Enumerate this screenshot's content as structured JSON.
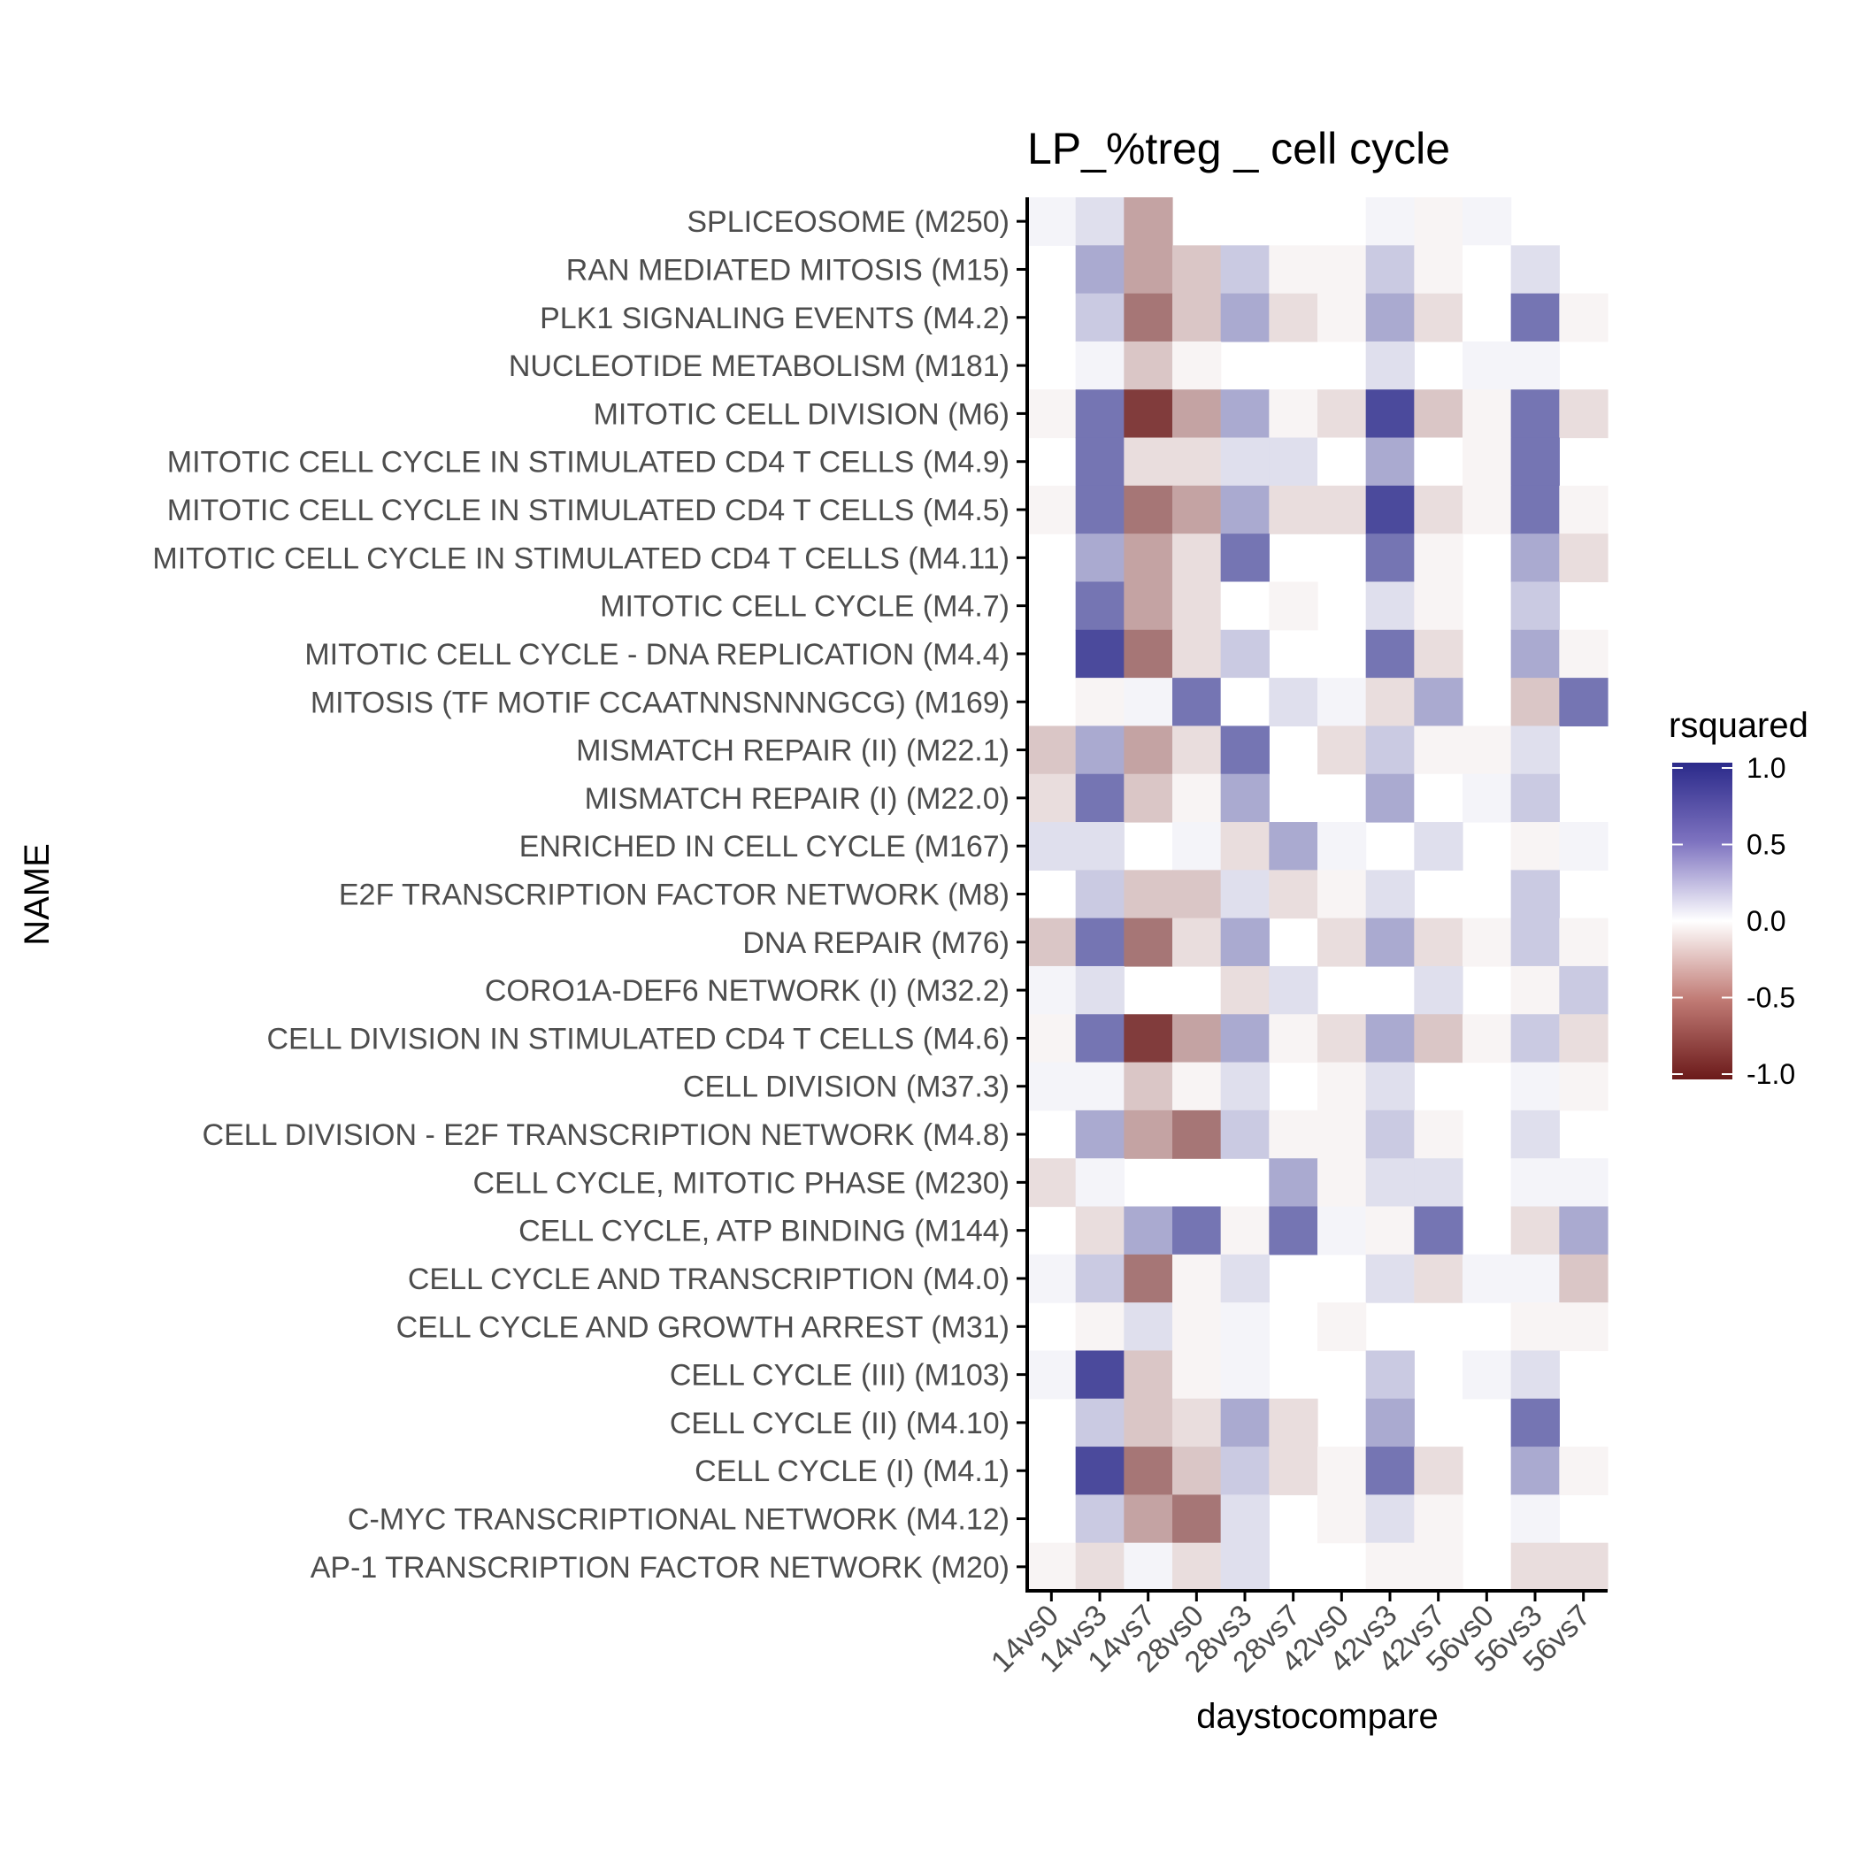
{
  "chart_data": {
    "type": "heatmap",
    "title": "LP_%treg _ cell cycle",
    "xlabel": "daystocompare",
    "ylabel": "NAME",
    "columns": [
      "14vs0",
      "14vs3",
      "14vs7",
      "28vs0",
      "28vs3",
      "28vs7",
      "42vs0",
      "42vs3",
      "42vs7",
      "56vs0",
      "56vs3",
      "56vs7"
    ],
    "rows": [
      "SPLICEOSOME (M250)",
      "RAN MEDIATED MITOSIS (M15)",
      "PLK1 SIGNALING EVENTS (M4.2)",
      "NUCLEOTIDE METABOLISM (M181)",
      "MITOTIC CELL DIVISION (M6)",
      "MITOTIC CELL CYCLE IN STIMULATED CD4 T CELLS (M4.9)",
      "MITOTIC CELL CYCLE IN STIMULATED CD4 T CELLS (M4.5)",
      "MITOTIC CELL CYCLE IN STIMULATED CD4 T CELLS (M4.11)",
      "MITOTIC CELL CYCLE (M4.7)",
      "MITOTIC CELL CYCLE - DNA REPLICATION (M4.4)",
      "MITOSIS (TF MOTIF CCAATNNSNNNGCG) (M169)",
      "MISMATCH REPAIR (II) (M22.1)",
      "MISMATCH REPAIR (I) (M22.0)",
      "ENRICHED IN CELL CYCLE (M167)",
      "E2F TRANSCRIPTION FACTOR NETWORK (M8)",
      "DNA REPAIR (M76)",
      "CORO1A-DEF6 NETWORK (I) (M32.2)",
      "CELL DIVISION IN STIMULATED CD4 T CELLS (M4.6)",
      "CELL DIVISION (M37.3)",
      "CELL DIVISION - E2F TRANSCRIPTION NETWORK (M4.8)",
      "CELL CYCLE, MITOTIC PHASE (M230)",
      "CELL CYCLE, ATP BINDING (M144)",
      "CELL CYCLE AND TRANSCRIPTION (M4.0)",
      "CELL CYCLE AND GROWTH ARREST (M31)",
      "CELL CYCLE (III) (M103)",
      "CELL CYCLE (II) (M4.10)",
      "CELL CYCLE (I) (M4.1)",
      "C-MYC TRANSCRIPTIONAL NETWORK (M4.12)",
      "AP-1 TRANSCRIPTION FACTOR NETWORK (M20)"
    ],
    "values": [
      [
        0.05,
        0.15,
        -0.4,
        null,
        null,
        null,
        null,
        0.05,
        -0.05,
        0.05,
        null,
        null
      ],
      [
        null,
        0.4,
        -0.4,
        -0.25,
        0.25,
        -0.05,
        -0.05,
        0.25,
        -0.05,
        0.0,
        0.15,
        null
      ],
      [
        null,
        0.25,
        -0.6,
        -0.25,
        0.4,
        -0.15,
        -0.05,
        0.4,
        -0.15,
        0.0,
        0.65,
        -0.05
      ],
      [
        null,
        0.05,
        -0.25,
        -0.05,
        null,
        null,
        null,
        0.15,
        null,
        0.05,
        0.05,
        null
      ],
      [
        -0.05,
        0.65,
        -0.85,
        -0.4,
        0.4,
        -0.05,
        -0.15,
        0.85,
        -0.25,
        -0.05,
        0.65,
        -0.15
      ],
      [
        null,
        0.65,
        -0.15,
        -0.15,
        0.15,
        0.15,
        0.0,
        0.4,
        0.0,
        -0.05,
        0.65,
        null
      ],
      [
        -0.05,
        0.65,
        -0.6,
        -0.4,
        0.4,
        -0.15,
        -0.15,
        0.85,
        -0.15,
        -0.05,
        0.65,
        -0.05
      ],
      [
        null,
        0.4,
        -0.4,
        -0.15,
        0.65,
        null,
        null,
        0.65,
        -0.05,
        null,
        0.4,
        -0.15
      ],
      [
        null,
        0.65,
        -0.4,
        -0.15,
        0.0,
        -0.05,
        null,
        0.15,
        -0.05,
        null,
        0.25,
        null
      ],
      [
        null,
        0.85,
        -0.6,
        -0.15,
        0.25,
        null,
        null,
        0.65,
        -0.15,
        null,
        0.4,
        -0.05
      ],
      [
        null,
        -0.05,
        0.05,
        0.65,
        0.0,
        0.15,
        0.05,
        -0.15,
        0.4,
        null,
        -0.25,
        0.65
      ],
      [
        -0.25,
        0.4,
        -0.4,
        -0.15,
        0.65,
        null,
        -0.15,
        0.25,
        -0.05,
        -0.05,
        0.15,
        null
      ],
      [
        -0.15,
        0.65,
        -0.25,
        -0.05,
        0.4,
        null,
        null,
        0.4,
        0.0,
        0.05,
        0.25,
        null
      ],
      [
        0.15,
        0.15,
        null,
        0.05,
        -0.15,
        0.4,
        0.05,
        null,
        0.15,
        null,
        -0.05,
        0.05
      ],
      [
        null,
        0.25,
        -0.25,
        -0.25,
        0.15,
        -0.15,
        -0.05,
        0.15,
        null,
        null,
        0.25,
        null
      ],
      [
        -0.25,
        0.65,
        -0.6,
        -0.15,
        0.4,
        null,
        -0.15,
        0.4,
        -0.15,
        -0.05,
        0.25,
        -0.05
      ],
      [
        0.05,
        0.15,
        null,
        null,
        -0.15,
        0.15,
        null,
        null,
        0.15,
        null,
        -0.05,
        0.25
      ],
      [
        -0.05,
        0.65,
        -0.85,
        -0.4,
        0.4,
        -0.05,
        -0.15,
        0.4,
        -0.25,
        -0.05,
        0.25,
        -0.15
      ],
      [
        0.05,
        0.05,
        -0.25,
        -0.05,
        0.15,
        null,
        -0.05,
        0.15,
        null,
        null,
        0.05,
        -0.05
      ],
      [
        null,
        0.4,
        -0.4,
        -0.6,
        0.25,
        -0.05,
        -0.05,
        0.25,
        -0.05,
        null,
        0.15,
        null
      ],
      [
        -0.15,
        0.05,
        null,
        null,
        null,
        0.4,
        -0.05,
        0.15,
        0.15,
        null,
        0.05,
        0.05
      ],
      [
        null,
        -0.15,
        0.4,
        0.65,
        -0.05,
        0.65,
        0.05,
        -0.05,
        0.65,
        null,
        -0.15,
        0.4
      ],
      [
        0.05,
        0.25,
        -0.6,
        -0.05,
        0.15,
        null,
        null,
        0.15,
        -0.15,
        0.05,
        0.05,
        -0.25
      ],
      [
        null,
        -0.05,
        0.15,
        -0.05,
        0.05,
        null,
        -0.05,
        null,
        null,
        null,
        -0.05,
        -0.05
      ],
      [
        0.05,
        0.85,
        -0.25,
        -0.05,
        0.05,
        null,
        null,
        0.25,
        null,
        0.05,
        0.15,
        null
      ],
      [
        null,
        0.25,
        -0.25,
        -0.15,
        0.4,
        -0.15,
        null,
        0.4,
        null,
        null,
        0.65,
        null
      ],
      [
        null,
        0.85,
        -0.6,
        -0.25,
        0.25,
        -0.15,
        -0.05,
        0.65,
        -0.15,
        null,
        0.4,
        -0.05
      ],
      [
        null,
        0.25,
        -0.4,
        -0.6,
        0.15,
        null,
        -0.05,
        0.15,
        -0.05,
        null,
        0.05,
        null
      ],
      [
        -0.05,
        -0.15,
        0.05,
        -0.15,
        0.15,
        null,
        null,
        -0.05,
        -0.05,
        null,
        -0.15,
        -0.15
      ]
    ],
    "legend": {
      "title": "rsquared",
      "ticks": [
        "1.0",
        "0.5",
        "0.0",
        "-0.5",
        "-1.0"
      ],
      "tick_values": [
        1.0,
        0.5,
        0.0,
        -0.5,
        -1.0
      ],
      "range": [
        -1.0,
        1.0
      ],
      "position": "right"
    },
    "colors": {
      "high": "#2b2a8a",
      "mid": "#ffffff",
      "low": "#6b1a1a",
      "axis": "#000000",
      "label": "#4d4d4d"
    },
    "grid": false
  }
}
